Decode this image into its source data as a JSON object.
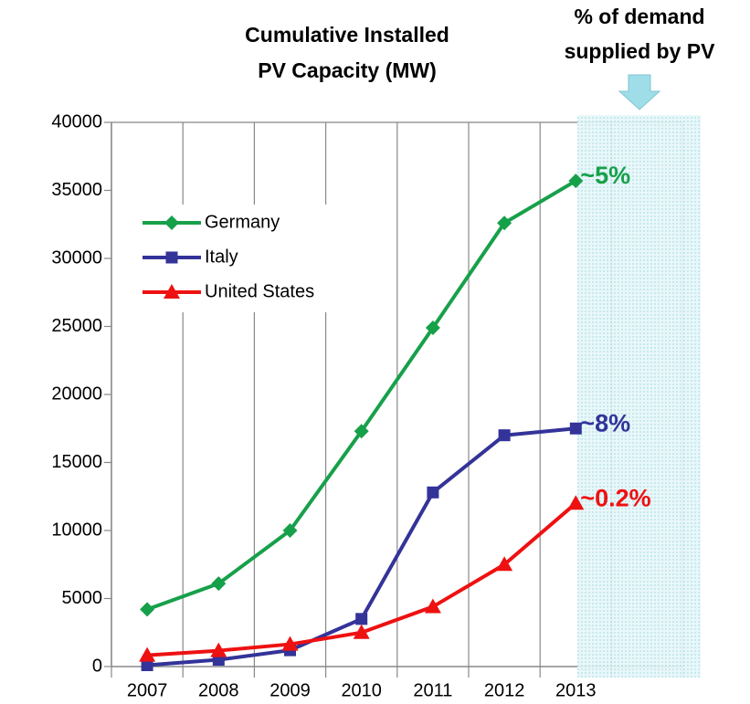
{
  "chart_data": {
    "type": "line",
    "title": [
      "Cumulative Installed",
      "PV Capacity (MW)"
    ],
    "subtitle": [
      "% of  demand",
      "supplied by PV"
    ],
    "categories": [
      "2007",
      "2008",
      "2009",
      "2010",
      "2011",
      "2012",
      "2013",
      null
    ],
    "series": [
      {
        "name": "Germany",
        "color": "#17a04a",
        "marker": "diamond",
        "annotation": "~5%",
        "values": [
          4200,
          6100,
          10000,
          17300,
          24900,
          32600,
          35700,
          null
        ]
      },
      {
        "name": "Italy",
        "color": "#333399",
        "marker": "square",
        "annotation": "~8%",
        "values": [
          100,
          500,
          1200,
          3500,
          12800,
          17000,
          17500,
          null
        ]
      },
      {
        "name": "United States",
        "color": "#ee1111",
        "marker": "triangle",
        "annotation": "~0.2%",
        "values": [
          830,
          1170,
          1640,
          2500,
          4400,
          7500,
          12000,
          null
        ]
      }
    ],
    "ylim": [
      0,
      40000
    ],
    "yticks": [
      0,
      5000,
      10000,
      15000,
      20000,
      25000,
      30000,
      35000,
      40000
    ],
    "grid": "x",
    "legend": "upper left"
  }
}
